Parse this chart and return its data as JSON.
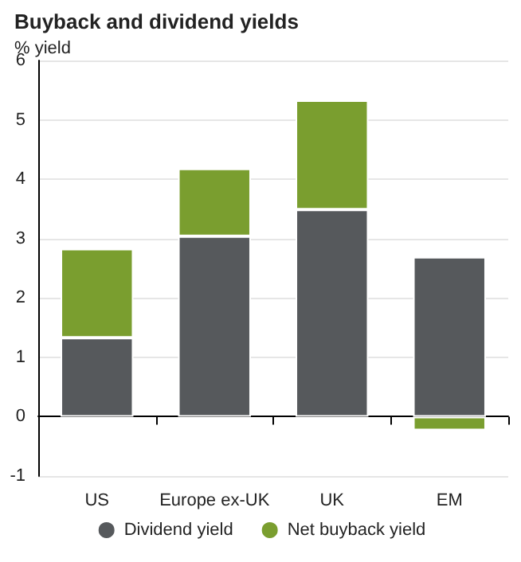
{
  "chart_data": {
    "type": "bar",
    "title": "Buyback and dividend yields",
    "subtitle": "% yield",
    "categories": [
      "US",
      "Europe ex-UK",
      "UK",
      "EM"
    ],
    "series": [
      {
        "name": "Dividend yield",
        "color": "#56595c",
        "values": [
          1.33,
          3.04,
          3.49,
          2.69
        ]
      },
      {
        "name": "Net buyback yield",
        "color": "#7a9e2f",
        "values": [
          1.5,
          1.14,
          1.84,
          -0.23
        ]
      }
    ],
    "stacked": true,
    "ylim": [
      -1,
      6
    ],
    "yticks": [
      -1,
      0,
      1,
      2,
      3,
      4,
      5,
      6
    ],
    "grid": "y",
    "legend": "bottom"
  }
}
